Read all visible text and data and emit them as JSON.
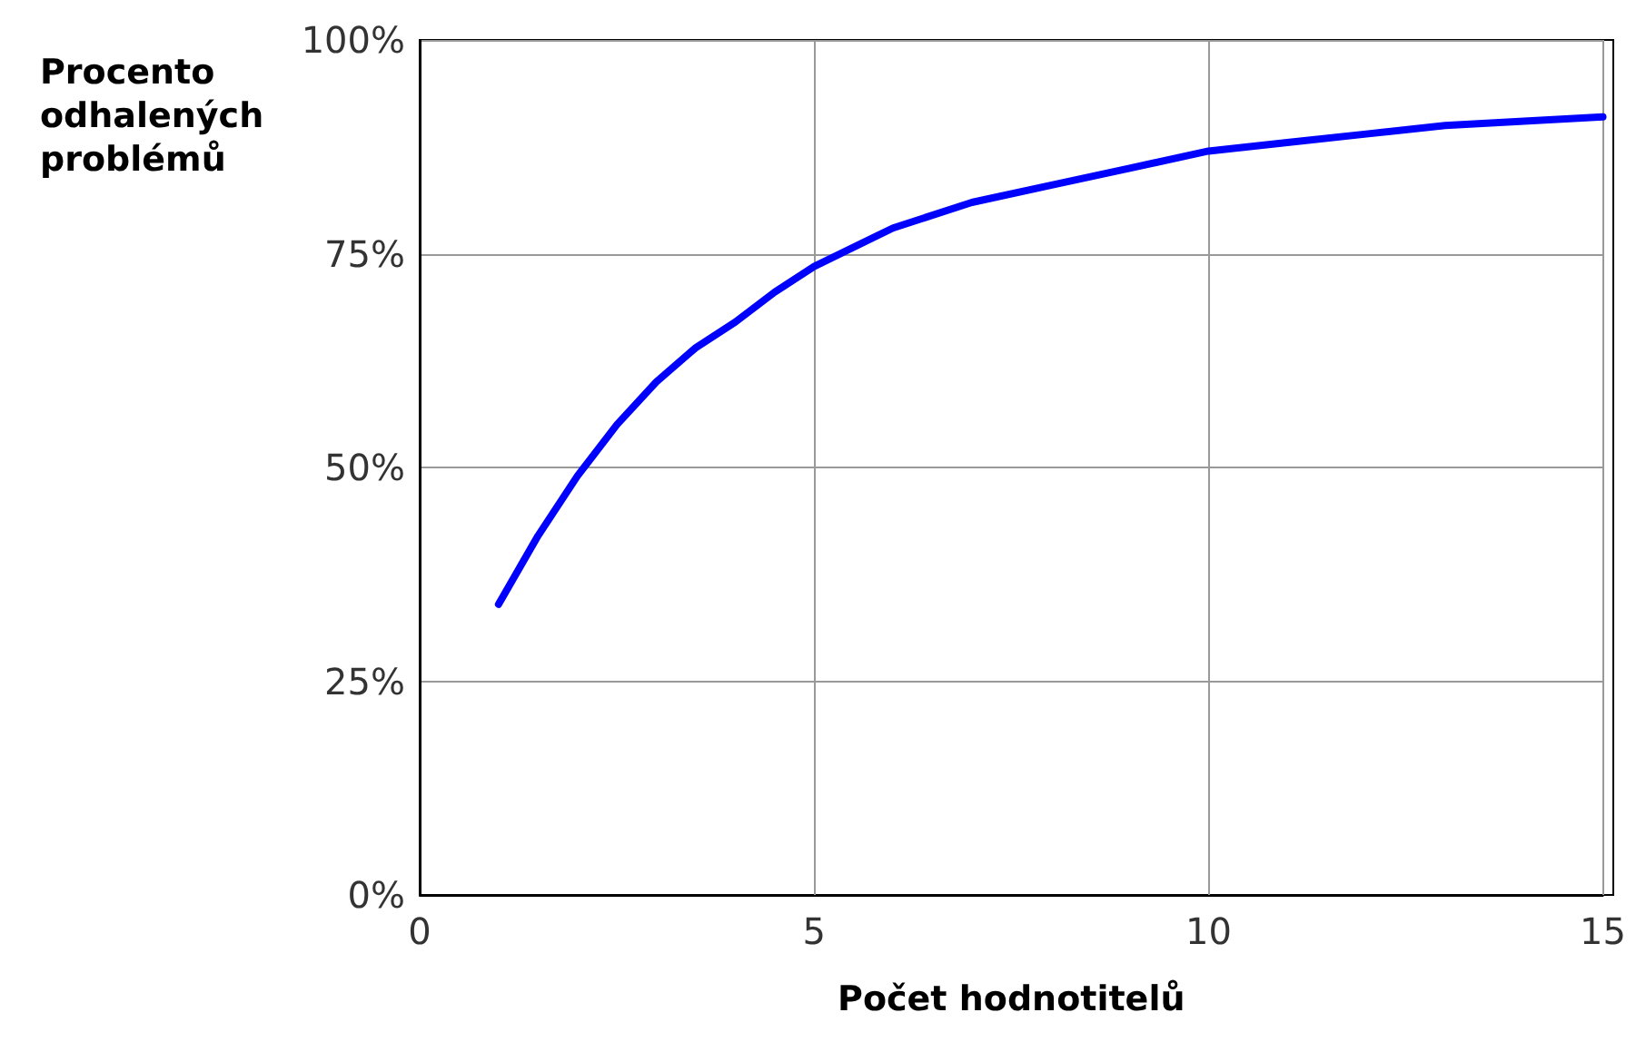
{
  "chart_data": {
    "type": "line",
    "xlabel": "Počet hodnotitelů",
    "ylabel": "Procento\nodhalených\nproblémů",
    "x": [
      1,
      1.5,
      2,
      2.5,
      3,
      3.5,
      4,
      4.5,
      5,
      6,
      7,
      8,
      9,
      10,
      11,
      12,
      13,
      14,
      15
    ],
    "series": [
      {
        "color": "#0000ff",
        "values": [
          34,
          42,
          49,
          55,
          60,
          64,
          67,
          70.5,
          73.5,
          78,
          81,
          83,
          85,
          87,
          88,
          89,
          90,
          90.5,
          91
        ]
      }
    ],
    "xlim": [
      0,
      15
    ],
    "xticks": [
      0,
      5,
      10,
      15
    ],
    "ylim": [
      0,
      100
    ],
    "yticks": [
      {
        "value": 0,
        "label": "0%"
      },
      {
        "value": 25,
        "label": "25%"
      },
      {
        "value": 50,
        "label": "50%"
      },
      {
        "value": 75,
        "label": "75%"
      },
      {
        "value": 100,
        "label": "100%"
      }
    ],
    "grid": true,
    "marker": "none",
    "line_style": "solid"
  }
}
